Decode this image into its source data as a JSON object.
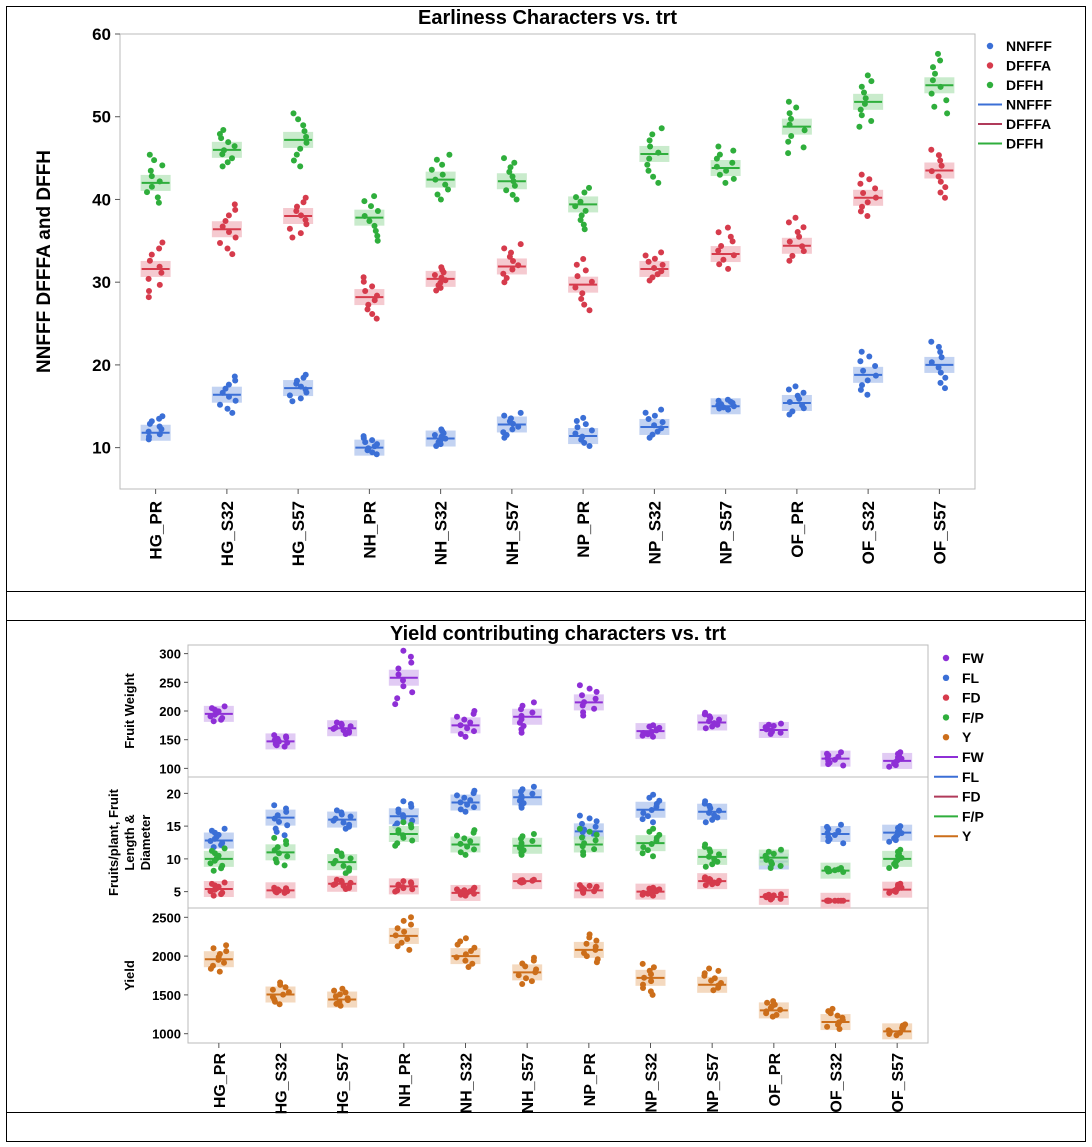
{
  "chart_data": [
    {
      "type": "scatter",
      "title": "Earliness Characters vs. trt",
      "xlabel": "",
      "ylabel": "NNFFF DFFFA and DFFH",
      "ylim": [
        5,
        60
      ],
      "yticks": [
        10,
        20,
        30,
        40,
        50,
        60
      ],
      "categories": [
        "HG_PR",
        "HG_S32",
        "HG_S57",
        "NH_PR",
        "NH_S32",
        "NH_S57",
        "NP_PR",
        "NP_S32",
        "NP_S57",
        "OF_PR",
        "OF_S32",
        "OF_S57"
      ],
      "legend_position": "right",
      "legend": [
        {
          "label": "NNFFF",
          "kind": "point",
          "color": "#3b6fd6"
        },
        {
          "label": "DFFFA",
          "kind": "point",
          "color": "#d63b4c"
        },
        {
          "label": "DFFH",
          "kind": "point",
          "color": "#2fae3c"
        },
        {
          "label": "NNFFF",
          "kind": "line",
          "color": "#3b6fd6"
        },
        {
          "label": "DFFFA",
          "kind": "line",
          "color": "#b03a5a"
        },
        {
          "label": "DFFH",
          "kind": "line",
          "color": "#2fae3c"
        }
      ],
      "series": [
        {
          "name": "NNFFF",
          "color": "#3b6fd6",
          "band": "#b9cbf0",
          "means": [
            11.8,
            16.4,
            17.2,
            10.0,
            11.1,
            12.8,
            11.4,
            12.5,
            15.0,
            15.4,
            18.8,
            20.0
          ],
          "mins": [
            11.0,
            14.2,
            15.6,
            9.2,
            10.2,
            11.2,
            10.2,
            11.2,
            14.6,
            14.0,
            16.4,
            17.2
          ],
          "maxs": [
            13.8,
            18.6,
            18.8,
            11.4,
            12.2,
            14.2,
            13.6,
            14.6,
            15.8,
            17.4,
            21.6,
            22.8
          ]
        },
        {
          "name": "DFFFA",
          "color": "#d63b4c",
          "band": "#f3c1c8",
          "means": [
            31.6,
            36.4,
            38.0,
            28.2,
            30.4,
            31.9,
            29.7,
            31.6,
            33.4,
            34.4,
            40.2,
            43.5
          ],
          "mins": [
            28.2,
            33.4,
            35.4,
            25.6,
            29.0,
            30.0,
            26.6,
            30.2,
            31.6,
            32.6,
            38.0,
            40.2
          ],
          "maxs": [
            34.8,
            39.4,
            40.2,
            30.6,
            31.8,
            34.6,
            32.8,
            33.6,
            36.6,
            37.8,
            43.0,
            46.0
          ]
        },
        {
          "name": "DFFH",
          "color": "#2fae3c",
          "band": "#bfe7c3",
          "means": [
            42.0,
            46.0,
            47.2,
            37.8,
            42.4,
            42.2,
            39.4,
            45.5,
            43.8,
            48.8,
            51.8,
            53.8
          ],
          "mins": [
            39.6,
            44.0,
            44.0,
            35.0,
            40.0,
            40.0,
            36.4,
            42.0,
            42.0,
            45.6,
            48.8,
            50.4
          ],
          "maxs": [
            45.4,
            48.4,
            50.4,
            40.4,
            45.4,
            45.0,
            41.4,
            48.6,
            46.4,
            51.8,
            55.0,
            57.6
          ]
        }
      ]
    },
    {
      "type": "scatter",
      "title": "Yield contributing characters  vs. trt",
      "xlabel": "",
      "categories": [
        "HG_PR",
        "HG_S32",
        "HG_S57",
        "NH_PR",
        "NH_S32",
        "NH_S57",
        "NP_PR",
        "NP_S32",
        "NP_S57",
        "OF_PR",
        "OF_S32",
        "OF_S57"
      ],
      "legend_position": "right",
      "legend": [
        {
          "label": "FW",
          "kind": "point",
          "color": "#8e2fd6"
        },
        {
          "label": "FL",
          "kind": "point",
          "color": "#3b6fd6"
        },
        {
          "label": "FD",
          "kind": "point",
          "color": "#d63b4c"
        },
        {
          "label": "F/P",
          "kind": "point",
          "color": "#2fae3c"
        },
        {
          "label": "Y",
          "kind": "point",
          "color": "#cc6e1a"
        },
        {
          "label": "FW",
          "kind": "line",
          "color": "#8e2fd6"
        },
        {
          "label": "FL",
          "kind": "line",
          "color": "#3b6fd6"
        },
        {
          "label": "FD",
          "kind": "line",
          "color": "#b03a5a"
        },
        {
          "label": "F/P",
          "kind": "line",
          "color": "#2fae3c"
        },
        {
          "label": "Y",
          "kind": "line",
          "color": "#cc6e1a"
        }
      ],
      "panels": [
        {
          "ylabel": "Fruit Weight",
          "ylim": [
            85,
            315
          ],
          "yticks": [
            100,
            150,
            200,
            250,
            300
          ],
          "series": [
            {
              "name": "FW",
              "color": "#8e2fd6",
              "band": "#dcc2f2",
              "means": [
                195,
                147,
                170,
                258,
                175,
                190,
                215,
                165,
                180,
                167,
                117,
                113
              ],
              "mins": [
                182,
                138,
                160,
                212,
                155,
                162,
                192,
                155,
                170,
                160,
                105,
                103
              ],
              "maxs": [
                208,
                158,
                180,
                305,
                200,
                215,
                245,
                175,
                197,
                178,
                128,
                128
              ]
            }
          ]
        },
        {
          "ylabel": "Fruits/plant, Fruit Length & Diameter",
          "ylim": [
            2.5,
            22.5
          ],
          "yticks": [
            5,
            10,
            15,
            20
          ],
          "series": [
            {
              "name": "FL",
              "color": "#3b6fd6",
              "band": "#b9cbf0",
              "means": [
                12.8,
                16.3,
                16.0,
                16.5,
                18.6,
                19.4,
                14.2,
                17.5,
                17.2,
                9.6,
                13.8,
                14.0
              ],
              "mins": [
                11.8,
                13.6,
                14.6,
                15.0,
                17.2,
                17.8,
                12.8,
                15.6,
                15.6,
                9.0,
                12.4,
                12.6
              ],
              "maxs": [
                14.6,
                18.2,
                17.4,
                18.8,
                20.4,
                21.0,
                16.6,
                19.8,
                18.8,
                11.2,
                15.2,
                15.0
              ]
            },
            {
              "name": "F/P",
              "color": "#2fae3c",
              "band": "#bfe7c3",
              "means": [
                10.0,
                11.0,
                9.5,
                13.8,
                12.2,
                12.0,
                12.2,
                12.4,
                10.3,
                10.2,
                8.2,
                10.0
              ],
              "mins": [
                8.2,
                9.0,
                7.8,
                12.0,
                10.6,
                10.6,
                10.6,
                10.4,
                8.8,
                8.6,
                8.0,
                8.6
              ],
              "maxs": [
                11.6,
                13.2,
                11.2,
                15.6,
                14.4,
                13.8,
                14.6,
                14.6,
                12.2,
                11.4,
                8.6,
                11.4
              ]
            },
            {
              "name": "FD",
              "color": "#d63b4c",
              "band": "#f3c1c8",
              "means": [
                5.4,
                5.2,
                6.2,
                5.8,
                4.8,
                6.6,
                5.2,
                5.0,
                6.6,
                4.2,
                3.6,
                5.3
              ],
              "mins": [
                4.4,
                4.8,
                5.4,
                5.0,
                4.4,
                6.4,
                4.8,
                4.4,
                6.0,
                3.8,
                3.6,
                4.8
              ],
              "maxs": [
                6.4,
                5.6,
                6.8,
                6.6,
                5.6,
                6.8,
                6.0,
                5.6,
                7.2,
                4.6,
                3.6,
                6.2
              ]
            }
          ]
        },
        {
          "ylabel": "Yield",
          "ylim": [
            880,
            2620
          ],
          "yticks": [
            1000,
            1500,
            2000,
            2500
          ],
          "series": [
            {
              "name": "Y",
              "color": "#cc6e1a",
              "band": "#f2d2b4",
              "means": [
                1960,
                1505,
                1440,
                2260,
                2000,
                1790,
                2080,
                1720,
                1630,
                1300,
                1150,
                1030
              ],
              "mins": [
                1800,
                1380,
                1360,
                2080,
                1860,
                1640,
                1920,
                1500,
                1560,
                1220,
                1060,
                980
              ],
              "maxs": [
                2140,
                1660,
                1580,
                2500,
                2230,
                1980,
                2280,
                1900,
                1840,
                1420,
                1320,
                1120
              ]
            }
          ]
        }
      ]
    }
  ]
}
